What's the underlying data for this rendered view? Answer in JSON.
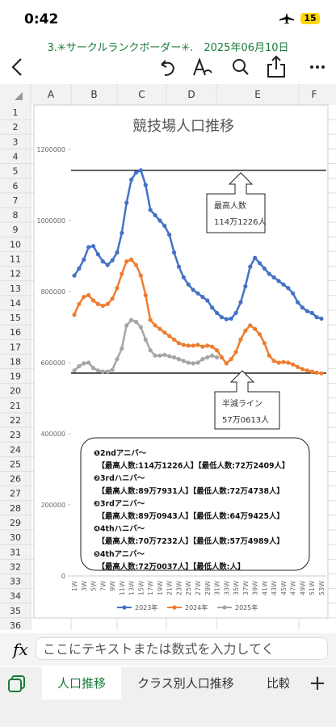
{
  "status_bar": {
    "time": "0:42",
    "battery": "15"
  },
  "file_title": "3.✳サークルランクボーダー✳.　2025年06月10日",
  "columns": [
    "A",
    "B",
    "C",
    "D",
    "E",
    "F"
  ],
  "rows": [
    1,
    2,
    3,
    4,
    5,
    6,
    7,
    8,
    9,
    10,
    11,
    12,
    13,
    14,
    15,
    16,
    17,
    18,
    19,
    20,
    21,
    22,
    23,
    24,
    25,
    26,
    27,
    28,
    29,
    30,
    31,
    32,
    33,
    34,
    35,
    36
  ],
  "chart_data": {
    "type": "line",
    "title": "競技場人口推移",
    "categories": [
      "1W",
      null,
      "3W",
      null,
      "5W",
      null,
      "7W",
      null,
      "9W",
      null,
      "11W",
      null,
      "13W",
      null,
      "15W",
      null,
      "17W",
      null,
      "19W",
      null,
      "21W",
      null,
      "23W",
      null,
      "25W",
      null,
      "27W",
      null,
      "29W",
      null,
      "31W",
      null,
      "33W",
      null,
      "35W",
      null,
      "37W",
      null,
      "39W",
      null,
      "41W",
      null,
      "43W",
      null,
      "45W",
      null,
      "47W",
      null,
      "49W",
      null,
      "51W",
      null,
      "53W"
    ],
    "series": [
      {
        "name": "2023年",
        "color": "#4472c4",
        "values": [
          845000,
          865000,
          890000,
          925000,
          928000,
          905000,
          885000,
          875000,
          888000,
          910000,
          965000,
          1050000,
          1115000,
          1135000,
          1141226,
          1100000,
          1030000,
          1015000,
          1000000,
          985000,
          960000,
          910000,
          870000,
          840000,
          820000,
          805000,
          795000,
          785000,
          775000,
          755000,
          740000,
          728000,
          722409,
          724000,
          740000,
          770000,
          815000,
          870000,
          895000,
          880000,
          865000,
          850000,
          840000,
          830000,
          820000,
          810000,
          795000,
          770000,
          755000,
          745000,
          740000,
          728000,
          724000
        ]
      },
      {
        "name": "2024年",
        "color": "#ed7d31",
        "values": [
          735000,
          765000,
          785000,
          790000,
          775000,
          765000,
          760000,
          765000,
          780000,
          810000,
          850000,
          885000,
          890000,
          875000,
          845000,
          790000,
          720000,
          705000,
          695000,
          685000,
          675000,
          665000,
          655000,
          650000,
          648000,
          648000,
          650000,
          645000,
          648000,
          645000,
          635000,
          615000,
          598000,
          610000,
          630000,
          665000,
          690000,
          705000,
          695000,
          680000,
          655000,
          620000,
          605000,
          600000,
          602000,
          600000,
          595000,
          588000,
          582000,
          578000,
          575000,
          572000,
          570000
        ]
      },
      {
        "name": "2025年",
        "color": "#a5a5a5",
        "values": [
          578000,
          590000,
          598000,
          600000,
          585000,
          578000,
          575000,
          575000,
          580000,
          610000,
          640000,
          705000,
          720000,
          715000,
          700000,
          665000,
          635000,
          620000,
          620000,
          622000,
          618000,
          615000,
          610000,
          605000,
          600000,
          598000,
          600000,
          610000,
          615000,
          620000,
          615000,
          null,
          null,
          null,
          null,
          null,
          null,
          null,
          null,
          null,
          null,
          null,
          null,
          null,
          null,
          null,
          null,
          null,
          null,
          null,
          null,
          null,
          null
        ]
      }
    ],
    "ylim": [
      0,
      1200000
    ],
    "yticks": [
      0,
      200000,
      400000,
      600000,
      800000,
      1000000,
      1200000
    ],
    "ref_lines": [
      1141226,
      570613
    ],
    "annotations": [
      {
        "title": "最高人数",
        "text": "114万1226人"
      },
      {
        "title": "半減ライン",
        "text": "57万0613人"
      }
    ],
    "notes": [
      "❶2ndアニバ〜",
      "　【最高人数:114万1226人】【最低人数:72万2409人】",
      "❷3rdハニバ〜",
      "　【最高人数:89万7931人】【最低人数:72万4738人】",
      "❸3rdアニバ〜",
      "　【最高人数:89万0943人】【最低人数:64万9425人】",
      "❹4thハニバ〜",
      "　【最高人数:70万7232人】【最低人数:57万4989人】",
      "❺4thアニバ〜",
      "　【最高人数:72万0037人】【最低人数:人】"
    ],
    "legend": "bottom"
  },
  "formula_bar": {
    "placeholder": "ここにテキストまたは数式を入力してく"
  },
  "tabs": [
    "人口推移",
    "クラス別人口推移",
    "比較"
  ]
}
